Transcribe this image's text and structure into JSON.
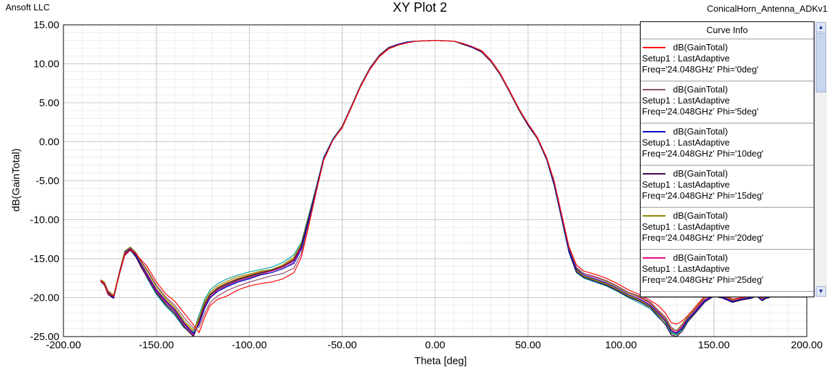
{
  "header": {
    "left": "Ansoft LLC",
    "title": "XY Plot 2",
    "right": "ConicalHorn_Antenna_ADKv1"
  },
  "legend": {
    "title": "Curve Info",
    "entries": [
      {
        "name": "dB(GainTotal)",
        "setup": "Setup1 : LastAdaptive",
        "freq": "Freq='24.048GHz' Phi='0deg'",
        "color": "#ff0000"
      },
      {
        "name": "dB(GainTotal)",
        "setup": "Setup1 : LastAdaptive",
        "freq": "Freq='24.048GHz' Phi='5deg'",
        "color": "#8c4a6b"
      },
      {
        "name": "dB(GainTotal)",
        "setup": "Setup1 : LastAdaptive",
        "freq": "Freq='24.048GHz' Phi='10deg'",
        "color": "#0000c8"
      },
      {
        "name": "dB(GainTotal)",
        "setup": "Setup1 : LastAdaptive",
        "freq": "Freq='24.048GHz' Phi='15deg'",
        "color": "#3c0050"
      },
      {
        "name": "dB(GainTotal)",
        "setup": "Setup1 : LastAdaptive",
        "freq": "Freq='24.048GHz' Phi='20deg'",
        "color": "#8c8200"
      },
      {
        "name": "dB(GainTotal)",
        "setup": "Setup1 : LastAdaptive",
        "freq": "Freq='24.048GHz' Phi='25deg'",
        "color": "#e6007e"
      }
    ]
  },
  "chart_data": {
    "type": "line",
    "title": "XY Plot 2",
    "xlabel": "Theta [deg]",
    "ylabel": "dB(GainTotal)",
    "xlim": [
      -200,
      200
    ],
    "ylim": [
      -25,
      15
    ],
    "xticks": [
      "-200.00",
      "-150.00",
      "-100.00",
      "-50.00",
      "0.00",
      "50.00",
      "100.00",
      "150.00",
      "200.00"
    ],
    "yticks": [
      "15.00",
      "10.00",
      "5.00",
      "0.00",
      "-5.00",
      "-10.00",
      "-15.00",
      "-20.00",
      "-25.00"
    ],
    "grid": true,
    "legend_position": "top-right",
    "x": [
      -180,
      -178,
      -176,
      -173,
      -170,
      -167,
      -164,
      -161,
      -158,
      -155,
      -150,
      -145,
      -140,
      -135,
      -130,
      -127,
      -124,
      -121,
      -117,
      -112,
      -106,
      -100,
      -94,
      -88,
      -82,
      -76,
      -72,
      -68,
      -64,
      -60,
      -55,
      -50,
      -45,
      -40,
      -35,
      -30,
      -25,
      -20,
      -15,
      -10,
      -5,
      0,
      5,
      10,
      15,
      20,
      25,
      30,
      35,
      40,
      45,
      50,
      55,
      60,
      64,
      68,
      72,
      76,
      80,
      86,
      92,
      98,
      104,
      110,
      116,
      120,
      124,
      127,
      130,
      133,
      136,
      140,
      145,
      150,
      155,
      160,
      165,
      170,
      173,
      176,
      178,
      180
    ],
    "series": [
      {
        "name": "dB(GainTotal) Phi='0deg'",
        "color": "#ff0000",
        "values": [
          -17.8,
          -18.3,
          -19.5,
          -19.8,
          -17.0,
          -14.5,
          -13.8,
          -14.4,
          -15.2,
          -16.0,
          -18.0,
          -19.5,
          -20.5,
          -22.0,
          -23.5,
          -24.5,
          -22.5,
          -21.0,
          -20.2,
          -19.8,
          -19.0,
          -18.5,
          -18.2,
          -18.0,
          -17.6,
          -16.8,
          -14.8,
          -10.8,
          -6.5,
          -2.4,
          0.2,
          1.8,
          4.4,
          7.1,
          9.3,
          10.9,
          11.9,
          12.4,
          12.7,
          12.9,
          12.95,
          13.0,
          12.95,
          12.9,
          12.6,
          12.2,
          11.7,
          10.5,
          8.8,
          6.6,
          4.3,
          2.3,
          0.6,
          -2.0,
          -5.0,
          -9.2,
          -13.4,
          -15.8,
          -16.6,
          -17.0,
          -17.5,
          -18.2,
          -19.0,
          -19.6,
          -20.4,
          -21.0,
          -22.0,
          -23.2,
          -23.4,
          -23.0,
          -22.3,
          -21.2,
          -19.8,
          -19.2,
          -19.6,
          -20.2,
          -20.0,
          -19.8,
          -19.5,
          -20.0,
          -19.8,
          -19.6
        ]
      },
      {
        "name": "dB(GainTotal) Phi='5deg'",
        "color": "#8c4a6b",
        "values": [
          -17.9,
          -18.1,
          -19.2,
          -19.9,
          -17.2,
          -14.2,
          -13.6,
          -14.3,
          -15.4,
          -16.4,
          -18.4,
          -19.9,
          -21.0,
          -22.6,
          -23.9,
          -23.8,
          -22.0,
          -20.6,
          -19.8,
          -19.1,
          -18.5,
          -18.0,
          -17.6,
          -17.2,
          -16.9,
          -16.2,
          -14.3,
          -10.5,
          -6.4,
          -2.3,
          0.2,
          1.9,
          4.5,
          7.2,
          9.4,
          11.0,
          12.0,
          12.4,
          12.7,
          12.9,
          12.95,
          13.0,
          12.95,
          12.9,
          12.6,
          12.2,
          11.6,
          10.4,
          8.7,
          6.5,
          4.2,
          2.3,
          0.5,
          -2.1,
          -5.1,
          -9.4,
          -13.6,
          -16.1,
          -16.9,
          -17.3,
          -17.8,
          -18.5,
          -19.3,
          -19.8,
          -20.6,
          -21.6,
          -22.5,
          -23.8,
          -24.3,
          -23.5,
          -22.6,
          -21.5,
          -20.1,
          -19.5,
          -19.8,
          -20.4,
          -20.1,
          -19.9,
          -19.6,
          -20.2,
          -19.9,
          -19.8
        ]
      },
      {
        "name": "dB(GainTotal) Phi='10deg'",
        "color": "#0000c8",
        "values": [
          -17.8,
          -18.2,
          -19.4,
          -20.0,
          -16.9,
          -14.3,
          -13.7,
          -14.6,
          -15.8,
          -17.0,
          -19.0,
          -20.4,
          -21.6,
          -23.3,
          -24.6,
          -23.4,
          -21.4,
          -20.0,
          -19.2,
          -18.6,
          -18.0,
          -17.6,
          -17.1,
          -16.8,
          -16.3,
          -15.6,
          -13.8,
          -10.1,
          -6.2,
          -2.2,
          0.3,
          1.9,
          4.5,
          7.2,
          9.4,
          11.0,
          12.0,
          12.5,
          12.8,
          12.9,
          12.95,
          13.0,
          12.95,
          12.9,
          12.6,
          12.1,
          11.6,
          10.4,
          8.7,
          6.5,
          4.2,
          2.2,
          0.5,
          -2.2,
          -5.3,
          -9.6,
          -13.9,
          -16.4,
          -17.1,
          -17.6,
          -18.1,
          -18.8,
          -19.6,
          -20.2,
          -21.0,
          -22.0,
          -23.0,
          -24.3,
          -24.6,
          -23.9,
          -22.8,
          -21.8,
          -20.4,
          -19.7,
          -20.0,
          -20.5,
          -20.2,
          -20.0,
          -19.7,
          -20.3,
          -20.0,
          -19.9
        ]
      },
      {
        "name": "dB(GainTotal) Phi='15deg'",
        "color": "#3c0050",
        "values": [
          -17.9,
          -18.4,
          -19.6,
          -20.1,
          -17.1,
          -14.6,
          -13.9,
          -14.8,
          -16.2,
          -17.4,
          -19.4,
          -20.9,
          -22.1,
          -23.8,
          -25.0,
          -23.0,
          -20.9,
          -19.6,
          -18.8,
          -18.2,
          -17.6,
          -17.2,
          -16.8,
          -16.5,
          -16.0,
          -15.1,
          -13.4,
          -9.8,
          -6.0,
          -2.1,
          0.3,
          2.0,
          4.6,
          7.3,
          9.5,
          11.1,
          12.1,
          12.5,
          12.8,
          12.9,
          12.95,
          13.0,
          12.95,
          12.9,
          12.5,
          12.1,
          11.5,
          10.3,
          8.6,
          6.4,
          4.1,
          2.1,
          0.4,
          -2.3,
          -5.5,
          -9.8,
          -14.1,
          -16.7,
          -17.4,
          -17.9,
          -18.4,
          -19.1,
          -19.9,
          -20.5,
          -21.3,
          -22.4,
          -23.5,
          -24.8,
          -25.0,
          -24.3,
          -23.1,
          -22.0,
          -20.6,
          -19.8,
          -20.1,
          -20.6,
          -20.3,
          -20.1,
          -19.8,
          -20.4,
          -20.1,
          -20.0
        ]
      },
      {
        "name": "dB(GainTotal) Phi='20deg'",
        "color": "#8c8200",
        "values": [
          -17.7,
          -18.0,
          -19.1,
          -19.7,
          -16.8,
          -14.0,
          -13.5,
          -14.2,
          -15.5,
          -16.6,
          -18.6,
          -20.1,
          -21.3,
          -23.0,
          -24.2,
          -22.6,
          -20.5,
          -19.3,
          -18.5,
          -17.9,
          -17.3,
          -17.0,
          -16.6,
          -16.4,
          -15.8,
          -14.8,
          -13.1,
          -9.6,
          -5.9,
          -2.1,
          0.3,
          2.0,
          4.6,
          7.3,
          9.5,
          11.1,
          12.1,
          12.5,
          12.8,
          12.9,
          12.95,
          13.0,
          12.95,
          12.9,
          12.5,
          12.1,
          11.5,
          10.3,
          8.6,
          6.4,
          4.1,
          2.1,
          0.4,
          -2.2,
          -5.4,
          -9.6,
          -13.8,
          -16.3,
          -16.9,
          -17.3,
          -17.9,
          -18.6,
          -19.4,
          -19.9,
          -20.7,
          -21.7,
          -22.7,
          -24.0,
          -24.2,
          -23.4,
          -22.4,
          -21.3,
          -20.0,
          -19.4,
          -19.7,
          -20.3,
          -20.0,
          -19.8,
          -19.5,
          -20.1,
          -19.8,
          -19.7
        ]
      },
      {
        "name": "dB(GainTotal) Phi='25deg'",
        "color": "#e6007e",
        "values": [
          -17.8,
          -18.3,
          -19.4,
          -19.9,
          -17.0,
          -14.4,
          -13.8,
          -14.5,
          -15.9,
          -17.2,
          -19.2,
          -20.6,
          -21.8,
          -23.5,
          -24.8,
          -23.2,
          -21.2,
          -19.9,
          -19.0,
          -18.4,
          -17.8,
          -17.4,
          -17.0,
          -16.6,
          -16.1,
          -15.3,
          -13.6,
          -9.9,
          -6.1,
          -2.2,
          0.3,
          1.9,
          4.5,
          7.2,
          9.4,
          11.0,
          12.0,
          12.5,
          12.8,
          12.9,
          12.95,
          13.0,
          12.95,
          12.9,
          12.6,
          12.1,
          11.6,
          10.4,
          8.7,
          6.5,
          4.2,
          2.2,
          0.5,
          -2.1,
          -5.2,
          -9.5,
          -13.7,
          -16.2,
          -16.9,
          -17.4,
          -17.9,
          -18.6,
          -19.4,
          -20.0,
          -20.8,
          -21.8,
          -22.8,
          -24.1,
          -24.5,
          -23.7,
          -22.6,
          -21.6,
          -20.3,
          -19.6,
          -19.9,
          -20.4,
          -20.1,
          -19.9,
          -19.6,
          -20.2,
          -19.9,
          -19.8
        ]
      },
      {
        "name": "",
        "color": "#00a0a0",
        "values": [
          -17.9,
          -18.2,
          -19.3,
          -19.8,
          -16.9,
          -14.1,
          -13.5,
          -14.4,
          -15.9,
          -17.5,
          -19.6,
          -21.1,
          -22.3,
          -23.9,
          -24.4,
          -22.2,
          -20.2,
          -19.0,
          -18.2,
          -17.6,
          -17.1,
          -16.7,
          -16.4,
          -16.1,
          -15.5,
          -14.5,
          -12.9,
          -9.4,
          -5.8,
          -2.0,
          0.4,
          2.0,
          4.6,
          7.3,
          9.5,
          11.1,
          12.1,
          12.5,
          12.8,
          12.9,
          12.95,
          13.0,
          12.95,
          12.9,
          12.5,
          12.1,
          11.5,
          10.3,
          8.6,
          6.4,
          4.1,
          2.1,
          0.4,
          -2.3,
          -5.6,
          -9.9,
          -14.2,
          -16.8,
          -17.5,
          -18.0,
          -18.5,
          -19.2,
          -20.0,
          -20.7,
          -21.5,
          -22.5,
          -23.4,
          -24.5,
          -24.7,
          -24.0,
          -22.9,
          -21.8,
          -20.5,
          -19.8,
          -20.1,
          -20.6,
          -20.3,
          -20.1,
          -19.8,
          -20.4,
          -20.1,
          -20.0
        ]
      },
      {
        "name": "",
        "color": "#ff8c00",
        "values": [
          -17.8,
          -18.1,
          -19.2,
          -19.8,
          -16.9,
          -14.2,
          -13.6,
          -14.3,
          -15.7,
          -16.9,
          -18.9,
          -20.3,
          -21.5,
          -23.2,
          -24.4,
          -22.8,
          -20.7,
          -19.5,
          -18.7,
          -18.1,
          -17.5,
          -17.1,
          -16.7,
          -16.4,
          -15.9,
          -15.0,
          -13.3,
          -9.7,
          -6.0,
          -2.1,
          0.3,
          2.0,
          4.6,
          7.3,
          9.5,
          11.1,
          12.1,
          12.5,
          12.8,
          12.9,
          12.95,
          13.0,
          12.95,
          12.9,
          12.5,
          12.1,
          11.5,
          10.3,
          8.6,
          6.4,
          4.1,
          2.1,
          0.4,
          -2.2,
          -5.4,
          -9.7,
          -13.9,
          -16.5,
          -17.2,
          -17.7,
          -18.2,
          -18.9,
          -19.7,
          -20.3,
          -21.1,
          -22.1,
          -23.1,
          -24.4,
          -24.5,
          -23.8,
          -22.7,
          -21.6,
          -20.3,
          -19.6,
          -19.9,
          -20.4,
          -20.1,
          -19.9,
          -19.6,
          -20.2,
          -19.9,
          -19.8
        ]
      },
      {
        "name": "",
        "color": "#228b22",
        "values": [
          -17.9,
          -18.3,
          -19.5,
          -20.0,
          -17.1,
          -14.5,
          -13.9,
          -14.7,
          -16.1,
          -17.3,
          -19.3,
          -20.8,
          -22.0,
          -23.7,
          -24.9,
          -23.1,
          -21.0,
          -19.7,
          -18.9,
          -18.3,
          -17.7,
          -17.3,
          -16.9,
          -16.6,
          -16.1,
          -15.2,
          -13.5,
          -9.8,
          -6.0,
          -2.1,
          0.3,
          2.0,
          4.6,
          7.3,
          9.5,
          11.1,
          12.1,
          12.5,
          12.8,
          12.9,
          12.95,
          13.0,
          12.95,
          12.9,
          12.5,
          12.1,
          11.5,
          10.3,
          8.6,
          6.4,
          4.1,
          2.1,
          0.4,
          -2.3,
          -5.5,
          -9.8,
          -14.0,
          -16.6,
          -17.3,
          -17.8,
          -18.3,
          -19.0,
          -19.8,
          -20.4,
          -21.2,
          -22.2,
          -23.2,
          -24.6,
          -24.8,
          -24.1,
          -23.0,
          -21.9,
          -20.5,
          -19.8,
          -20.1,
          -20.6,
          -20.3,
          -20.1,
          -19.8,
          -20.4,
          -20.1,
          -20.0
        ]
      },
      {
        "name": "",
        "color": "#6a5acd",
        "values": [
          -17.8,
          -18.2,
          -19.3,
          -19.9,
          -17.0,
          -14.3,
          -13.7,
          -14.5,
          -15.8,
          -17.0,
          -19.0,
          -20.5,
          -21.7,
          -23.4,
          -24.7,
          -23.3,
          -21.3,
          -20.0,
          -19.1,
          -18.5,
          -17.9,
          -17.5,
          -17.1,
          -16.8,
          -16.3,
          -15.5,
          -13.7,
          -10.0,
          -6.1,
          -2.2,
          0.3,
          1.9,
          4.5,
          7.2,
          9.4,
          11.0,
          12.0,
          12.5,
          12.8,
          12.9,
          12.95,
          13.0,
          12.95,
          12.9,
          12.6,
          12.1,
          11.6,
          10.4,
          8.7,
          6.5,
          4.2,
          2.2,
          0.5,
          -2.2,
          -5.3,
          -9.6,
          -13.8,
          -16.4,
          -17.1,
          -17.6,
          -18.1,
          -18.8,
          -19.6,
          -20.2,
          -21.0,
          -22.0,
          -23.0,
          -24.3,
          -24.5,
          -23.8,
          -22.7,
          -21.6,
          -20.3,
          -19.6,
          -19.9,
          -20.4,
          -20.1,
          -19.9,
          -19.6,
          -20.2,
          -19.9,
          -19.8
        ]
      }
    ]
  }
}
